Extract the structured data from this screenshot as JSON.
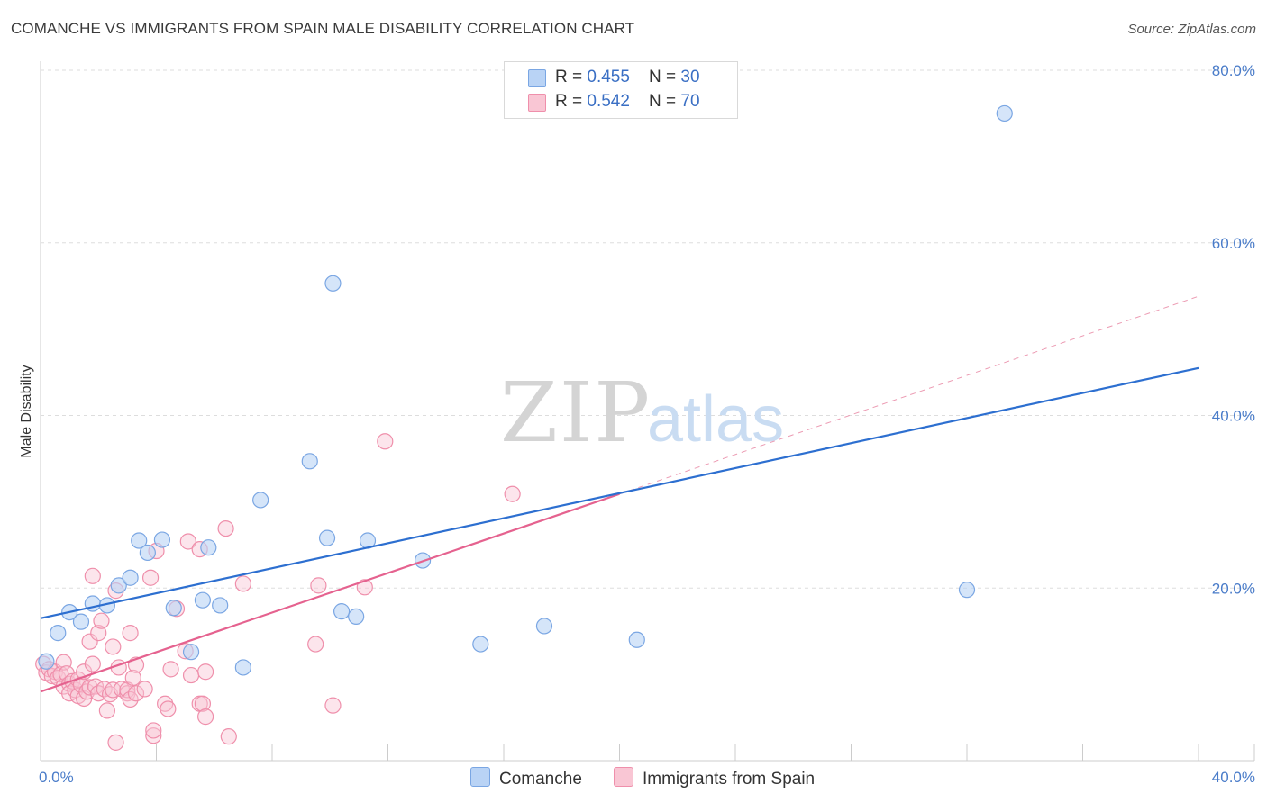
{
  "title": "COMANCHE VS IMMIGRANTS FROM SPAIN MALE DISABILITY CORRELATION CHART",
  "source": "Source: ZipAtlas.com",
  "watermark": {
    "zip": "ZIP",
    "atlas": "atlas"
  },
  "legend": {
    "rows": [
      {
        "r_label": "R = ",
        "r_value": "0.455",
        "n_label": "N = ",
        "n_value": "30"
      },
      {
        "r_label": "R = ",
        "r_value": "0.542",
        "n_label": "N = ",
        "n_value": "70"
      }
    ]
  },
  "colors": {
    "comanche_fill": "#b9d3f5",
    "comanche_stroke": "#7aa6e3",
    "comanche_line": "#2d6fd0",
    "spain_fill": "#f9c6d4",
    "spain_stroke": "#ef8fab",
    "spain_line": "#e5628f",
    "grid": "#dddddd",
    "tick_label": "#4a7cc9"
  },
  "chart_data": {
    "type": "scatter",
    "title": "COMANCHE VS IMMIGRANTS FROM SPAIN MALE DISABILITY CORRELATION CHART",
    "xlabel": "",
    "ylabel": "Male Disability",
    "xlim": [
      0,
      40
    ],
    "ylim": [
      0,
      80
    ],
    "x_tick_labels": [
      "0.0%",
      "40.0%"
    ],
    "y_ticks": [
      20,
      40,
      60,
      80
    ],
    "y_tick_labels": [
      "20.0%",
      "40.0%",
      "60.0%",
      "80.0%"
    ],
    "grid": true,
    "legend_position": "top-center",
    "series": [
      {
        "name": "Comanche",
        "r": 0.455,
        "n": 30,
        "points": [
          [
            0.2,
            11.5
          ],
          [
            0.6,
            14.8
          ],
          [
            1.0,
            17.2
          ],
          [
            1.4,
            16.1
          ],
          [
            1.8,
            18.2
          ],
          [
            2.3,
            18.0
          ],
          [
            2.7,
            20.3
          ],
          [
            3.1,
            21.2
          ],
          [
            3.4,
            25.5
          ],
          [
            3.7,
            24.1
          ],
          [
            4.2,
            25.6
          ],
          [
            4.6,
            17.7
          ],
          [
            5.2,
            12.6
          ],
          [
            5.6,
            18.6
          ],
          [
            5.8,
            24.7
          ],
          [
            6.2,
            18.0
          ],
          [
            7.0,
            10.8
          ],
          [
            7.6,
            30.2
          ],
          [
            9.3,
            34.7
          ],
          [
            9.9,
            25.8
          ],
          [
            10.1,
            55.3
          ],
          [
            10.4,
            17.3
          ],
          [
            10.9,
            16.7
          ],
          [
            11.3,
            25.5
          ],
          [
            13.2,
            23.2
          ],
          [
            15.2,
            13.5
          ],
          [
            17.4,
            15.6
          ],
          [
            20.6,
            14.0
          ],
          [
            32.0,
            19.8
          ],
          [
            33.3,
            75.0
          ]
        ],
        "trend": {
          "x": [
            0,
            40
          ],
          "y": [
            16.5,
            45.5
          ]
        }
      },
      {
        "name": "Immigrants from Spain",
        "r": 0.542,
        "n": 70,
        "points": [
          [
            0.1,
            11.2
          ],
          [
            0.2,
            10.2
          ],
          [
            0.3,
            10.6
          ],
          [
            0.4,
            9.8
          ],
          [
            0.5,
            10.3
          ],
          [
            0.6,
            9.6
          ],
          [
            0.7,
            10.0
          ],
          [
            0.8,
            8.6
          ],
          [
            0.8,
            11.4
          ],
          [
            0.9,
            10.1
          ],
          [
            1.0,
            8.9
          ],
          [
            1.0,
            7.8
          ],
          [
            1.1,
            9.2
          ],
          [
            1.2,
            8.2
          ],
          [
            1.3,
            9.4
          ],
          [
            1.3,
            7.5
          ],
          [
            1.4,
            8.8
          ],
          [
            1.5,
            7.2
          ],
          [
            1.5,
            10.3
          ],
          [
            1.6,
            8.0
          ],
          [
            1.7,
            8.5
          ],
          [
            1.7,
            13.8
          ],
          [
            1.8,
            21.4
          ],
          [
            1.8,
            11.2
          ],
          [
            1.9,
            8.6
          ],
          [
            2.0,
            14.8
          ],
          [
            2.0,
            7.8
          ],
          [
            2.1,
            16.2
          ],
          [
            2.2,
            8.3
          ],
          [
            2.3,
            5.8
          ],
          [
            2.4,
            7.7
          ],
          [
            2.5,
            13.2
          ],
          [
            2.5,
            8.2
          ],
          [
            2.6,
            19.7
          ],
          [
            2.6,
            2.1
          ],
          [
            2.7,
            10.8
          ],
          [
            2.8,
            8.3
          ],
          [
            3.0,
            7.8
          ],
          [
            3.0,
            8.2
          ],
          [
            3.1,
            14.8
          ],
          [
            3.1,
            7.1
          ],
          [
            3.2,
            9.6
          ],
          [
            3.3,
            7.8
          ],
          [
            3.3,
            11.1
          ],
          [
            3.6,
            8.3
          ],
          [
            3.8,
            21.2
          ],
          [
            3.9,
            2.9
          ],
          [
            3.9,
            3.5
          ],
          [
            4.0,
            24.3
          ],
          [
            4.3,
            6.6
          ],
          [
            4.4,
            6.0
          ],
          [
            4.5,
            10.6
          ],
          [
            4.7,
            17.6
          ],
          [
            5.0,
            12.7
          ],
          [
            5.1,
            25.4
          ],
          [
            5.2,
            9.9
          ],
          [
            5.5,
            24.5
          ],
          [
            5.5,
            6.6
          ],
          [
            5.6,
            6.6
          ],
          [
            5.7,
            10.3
          ],
          [
            5.7,
            5.1
          ],
          [
            6.4,
            26.9
          ],
          [
            6.5,
            2.8
          ],
          [
            7.0,
            20.5
          ],
          [
            9.5,
            13.5
          ],
          [
            9.6,
            20.3
          ],
          [
            10.1,
            6.4
          ],
          [
            11.2,
            20.1
          ],
          [
            11.9,
            37.0
          ],
          [
            16.3,
            30.9
          ]
        ],
        "trend": {
          "x": [
            0,
            20
          ],
          "y": [
            8.0,
            30.9
          ]
        },
        "trend_extension_dashed": {
          "x": [
            20,
            40
          ],
          "y": [
            30.9,
            53.8
          ]
        }
      }
    ]
  },
  "bottom_legend": {
    "items": [
      {
        "label": "Comanche"
      },
      {
        "label": "Immigrants from Spain"
      }
    ]
  }
}
